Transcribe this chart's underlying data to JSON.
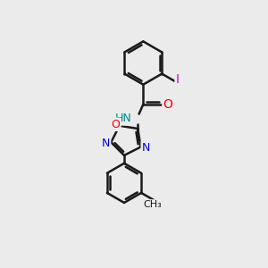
{
  "bg_color": "#ebebeb",
  "bond_color": "#1a1a1a",
  "bond_width": 1.8,
  "atom_colors": {
    "O": "#ff0000",
    "N": "#0000cc",
    "I": "#cc00cc",
    "H": "#008888",
    "C": "#1a1a1a"
  },
  "font_size": 9
}
